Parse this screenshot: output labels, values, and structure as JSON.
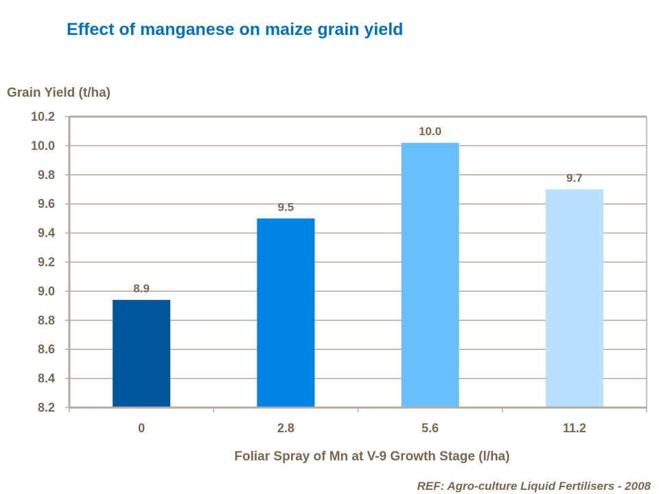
{
  "chart_data": {
    "type": "bar",
    "title": "Effect of manganese on maize grain yield",
    "ylabel": "Grain Yield (t/ha)",
    "xlabel": "Foliar Spray of Mn at V-9 Growth Stage (l/ha)",
    "categories": [
      "0",
      "2.8",
      "5.6",
      "11.2"
    ],
    "values": [
      8.94,
      9.5,
      10.02,
      9.7
    ],
    "data_labels": [
      "8.9",
      "9.5",
      "10.0",
      "9.7"
    ],
    "bar_colors": [
      "#00569A",
      "#0083E0",
      "#66BFFF",
      "#B8E0FF"
    ],
    "ylim": [
      8.2,
      10.2
    ],
    "yticks": [
      "8.2",
      "8.4",
      "8.6",
      "8.8",
      "9.0",
      "9.2",
      "9.4",
      "9.6",
      "9.8",
      "10.0",
      "10.2"
    ],
    "grid": true,
    "legend": "none"
  },
  "footer": {
    "reference": "REF: Agro-culture Liquid Fertilisers - 2008"
  }
}
